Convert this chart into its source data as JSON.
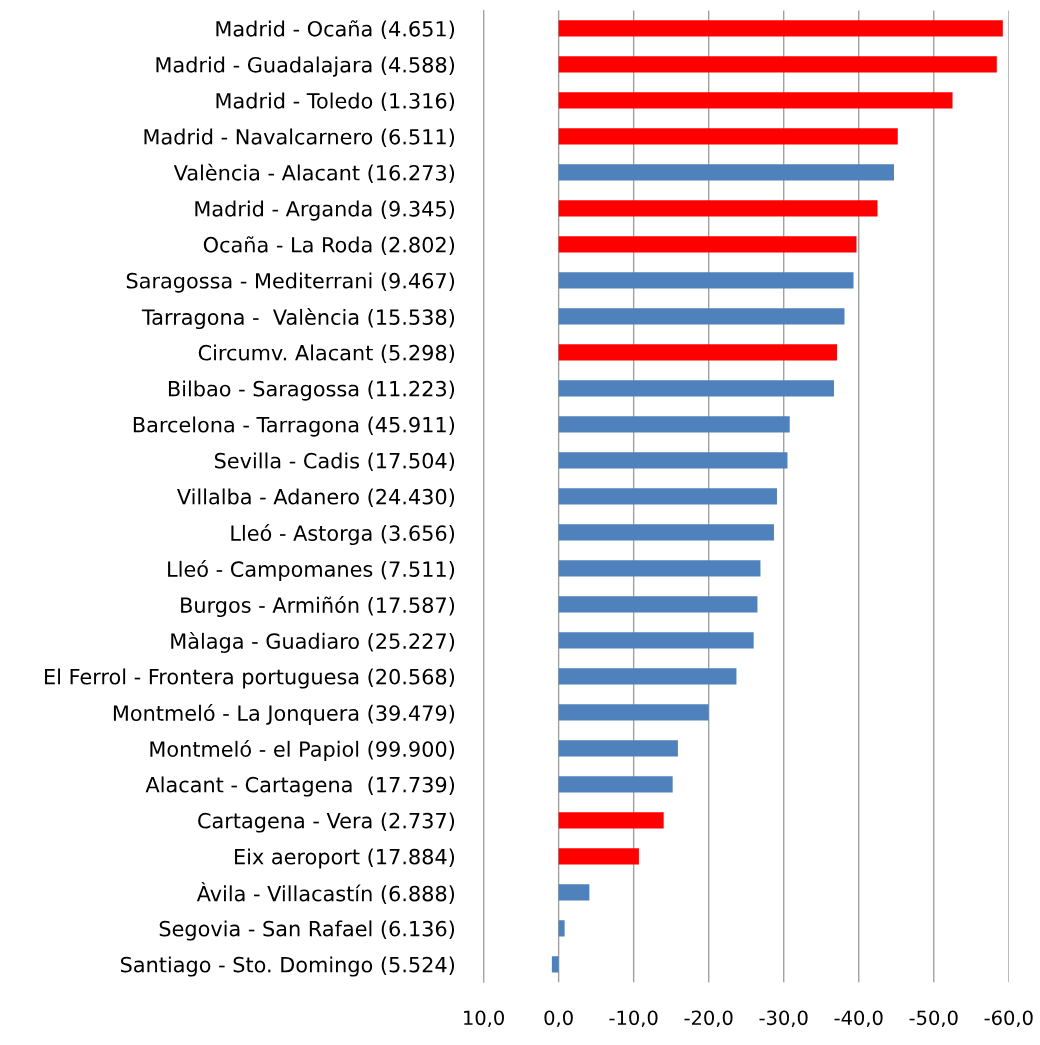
{
  "chart_data": {
    "type": "bar",
    "orientation": "horizontal",
    "grid": "x",
    "categories": [
      "Madrid - Ocaña (4.651)",
      "Madrid - Guadalajara (4.588)",
      "Madrid - Toledo (1.316)",
      "Madrid - Navalcarnero (6.511)",
      "València - Alacant (16.273)",
      "Madrid - Arganda (9.345)",
      "Ocaña - La Roda (2.802)",
      "Saragossa - Mediterrani (9.467)",
      "Tarragona -  València (15.538)",
      "Circumv. Alacant (5.298)",
      "Bilbao - Saragossa (11.223)",
      "Barcelona - Tarragona (45.911)",
      "Sevilla - Cadis (17.504)",
      "Villalba - Adanero (24.430)",
      "Lleó - Astorga (3.656)",
      "Lleó - Campomanes (7.511)",
      "Burgos - Armiñón (17.587)",
      "Màlaga - Guadiaro (25.227)",
      "El Ferrol - Frontera portuguesa (20.568)",
      "Montmeló - La Jonquera (39.479)",
      "Montmeló - el Papiol (99.900)",
      "Alacant - Cartagena  (17.739)",
      "Cartagena - Vera (2.737)",
      "Eix aeroport (17.884)",
      "Àvila - Villacastín (6.888)",
      "Segovia - San Rafael (6.136)",
      "Santiago - Sto. Domingo (5.524)"
    ],
    "values": [
      -59.2,
      -58.4,
      -52.5,
      -45.2,
      -44.7,
      -42.5,
      -39.7,
      -39.3,
      -38.1,
      -37.1,
      -36.7,
      -30.8,
      -30.5,
      -29.1,
      -28.7,
      -26.9,
      -26.5,
      -26.0,
      -23.7,
      -20.0,
      -15.9,
      -15.2,
      -14.0,
      -10.7,
      -4.1,
      -0.8,
      0.9
    ],
    "colors": [
      "#ff0000",
      "#ff0000",
      "#ff0000",
      "#ff0000",
      "#4f81bd",
      "#ff0000",
      "#ff0000",
      "#4f81bd",
      "#4f81bd",
      "#ff0000",
      "#4f81bd",
      "#4f81bd",
      "#4f81bd",
      "#4f81bd",
      "#4f81bd",
      "#4f81bd",
      "#4f81bd",
      "#4f81bd",
      "#4f81bd",
      "#4f81bd",
      "#4f81bd",
      "#4f81bd",
      "#ff0000",
      "#ff0000",
      "#4f81bd",
      "#4f81bd",
      "#4f81bd"
    ],
    "xlim": [
      10,
      -60
    ],
    "xticks": [
      {
        "value": 10,
        "label": "10,0"
      },
      {
        "value": 0,
        "label": "0,0"
      },
      {
        "value": -10,
        "label": "-10,0"
      },
      {
        "value": -20,
        "label": "-20,0"
      },
      {
        "value": -30,
        "label": "-30,0"
      },
      {
        "value": -40,
        "label": "-40,0"
      },
      {
        "value": -50,
        "label": "-50,0"
      },
      {
        "value": -60,
        "label": "-60,0"
      }
    ]
  }
}
